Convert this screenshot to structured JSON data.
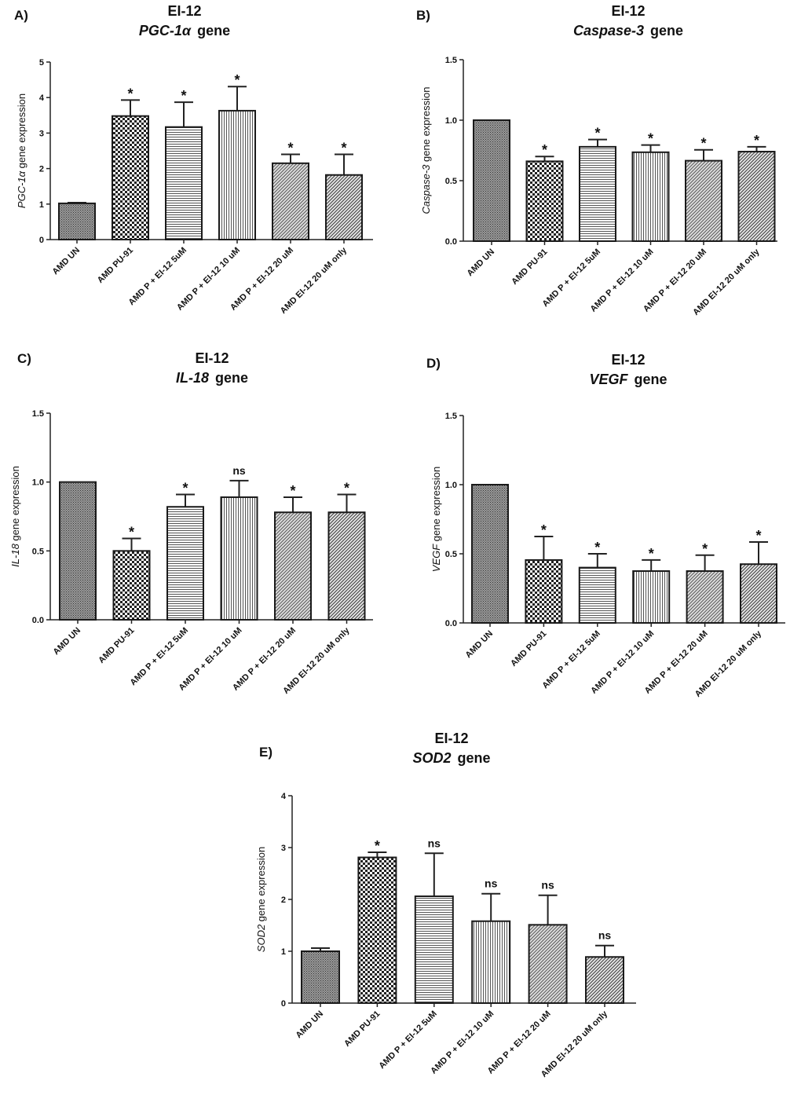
{
  "chart_data": [
    {
      "type": "bar",
      "panel_label": "A)",
      "title": "EI-12",
      "gene": "PGC-1α",
      "gene_suffix": "gene",
      "ylabel_gene": "PGC-1α",
      "ylabel_suffix": " gene expression",
      "ylim": [
        0,
        5
      ],
      "yticks": [
        "0",
        "1",
        "2",
        "3",
        "4",
        "5"
      ],
      "categories": [
        "AMD UN",
        "AMD PU-91",
        "AMD P + EI-12 5uM",
        "AMD P + EI-12 10 uM",
        "AMD P + EI-12 20 uM",
        "AMD EI-12 20 uM only"
      ],
      "values": [
        1.02,
        3.48,
        3.17,
        3.63,
        2.15,
        1.82
      ],
      "errors": [
        0.02,
        0.45,
        0.7,
        0.68,
        0.25,
        0.58
      ],
      "significance": [
        "",
        "*",
        "*",
        "*",
        "*",
        "*"
      ]
    },
    {
      "type": "bar",
      "panel_label": "B)",
      "title": "EI-12",
      "gene": "Caspase-3",
      "gene_suffix": "gene",
      "ylabel_gene": "Caspase-3",
      "ylabel_suffix": " gene expression",
      "ylim": [
        0,
        1.5
      ],
      "yticks": [
        "0.0",
        "0.5",
        "1.0",
        "1.5"
      ],
      "categories": [
        "AMD UN",
        "AMD PU-91",
        "AMD P + EI-12 5uM",
        "AMD P + EI-12 10 uM",
        "AMD P + EI-12 20 uM",
        "AMD EI-12 20 uM only"
      ],
      "values": [
        1.0,
        0.66,
        0.78,
        0.735,
        0.665,
        0.74
      ],
      "errors": [
        0,
        0.04,
        0.06,
        0.06,
        0.09,
        0.04
      ],
      "significance": [
        "",
        "*",
        "*",
        "*",
        "*",
        "*"
      ]
    },
    {
      "type": "bar",
      "panel_label": "C)",
      "title": "EI-12",
      "gene": "IL-18",
      "gene_suffix": "gene",
      "ylabel_gene": "IL-18",
      "ylabel_suffix": " gene expression",
      "ylim": [
        0,
        1.5
      ],
      "yticks": [
        "0.0",
        "0.5",
        "1.0",
        "1.5"
      ],
      "categories": [
        "AMD UN",
        "AMD PU-91",
        "AMD P + EI-12 5uM",
        "AMD P + EI-12 10 uM",
        "AMD P + EI-12 20 uM",
        "AMD EI-12 20 uM only"
      ],
      "values": [
        1.0,
        0.5,
        0.82,
        0.89,
        0.78,
        0.78
      ],
      "errors": [
        0,
        0.09,
        0.09,
        0.12,
        0.11,
        0.13
      ],
      "significance": [
        "",
        "*",
        "*",
        "ns",
        "*",
        "*"
      ]
    },
    {
      "type": "bar",
      "panel_label": "D)",
      "title": "EI-12",
      "gene": "VEGF",
      "gene_suffix": "gene",
      "ylabel_gene": "VEGF",
      "ylabel_suffix": " gene expression",
      "ylim": [
        0,
        1.5
      ],
      "yticks": [
        "0.0",
        "0.5",
        "1.0",
        "1.5"
      ],
      "categories": [
        "AMD UN",
        "AMD PU-91",
        "AMD P + EI-12 5uM",
        "AMD P + EI-12 10 uM",
        "AMD P + EI-12 20 uM",
        "AMD EI-12 20 uM only"
      ],
      "values": [
        1.0,
        0.455,
        0.4,
        0.375,
        0.375,
        0.425
      ],
      "errors": [
        0,
        0.17,
        0.1,
        0.08,
        0.115,
        0.16
      ],
      "significance": [
        "",
        "*",
        "*",
        "*",
        "*",
        "*"
      ]
    },
    {
      "type": "bar",
      "panel_label": "E)",
      "title": "EI-12",
      "gene": "SOD2",
      "gene_suffix": "gene",
      "ylabel_gene": "SOD2",
      "ylabel_suffix": " gene expression",
      "ylim": [
        0,
        4
      ],
      "yticks": [
        "0",
        "1",
        "2",
        "3",
        "4"
      ],
      "categories": [
        "AMD UN",
        "AMD PU-91",
        "AMD P + EI-12 5uM",
        "AMD P + EI-12 10 uM",
        "AMD P + EI-12 20 uM",
        "AMD EI-12 20 uM only"
      ],
      "values": [
        1.0,
        2.81,
        2.06,
        1.58,
        1.51,
        0.89
      ],
      "errors": [
        0.06,
        0.1,
        0.83,
        0.53,
        0.57,
        0.22
      ],
      "significance": [
        "",
        "*",
        "ns",
        "ns",
        "ns",
        "ns"
      ]
    }
  ]
}
